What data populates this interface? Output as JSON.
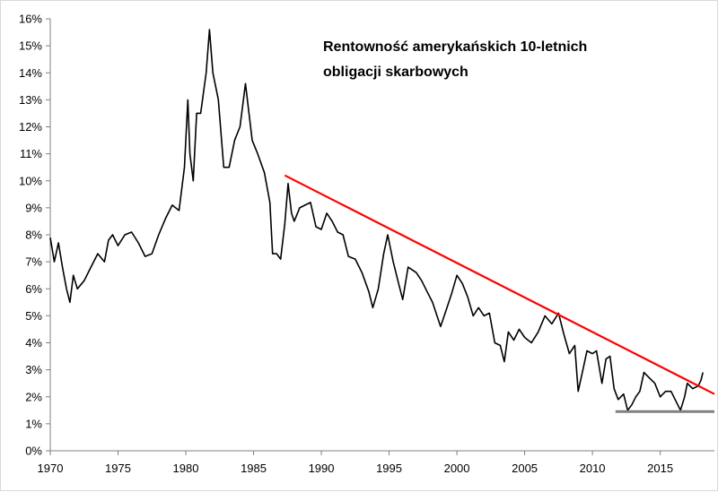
{
  "chart_data": {
    "type": "line",
    "title": "Rentowność amerykańskich 10-letnich obligacji skarbowych",
    "title_lines": [
      "Rentowność amerykańskich 10-letnich",
      "obligacji skarbowych"
    ],
    "xlabel": "",
    "ylabel": "",
    "xlim": [
      1970,
      2019
    ],
    "ylim": [
      0,
      16
    ],
    "x_ticks": [
      1970,
      1975,
      1980,
      1985,
      1990,
      1995,
      2000,
      2005,
      2010,
      2015
    ],
    "y_ticks": [
      0,
      1,
      2,
      3,
      4,
      5,
      6,
      7,
      8,
      9,
      10,
      11,
      12,
      13,
      14,
      15,
      16
    ],
    "y_tick_labels": [
      "0%",
      "1%",
      "2%",
      "3%",
      "4%",
      "5%",
      "6%",
      "7%",
      "8%",
      "9%",
      "10%",
      "11%",
      "12%",
      "13%",
      "14%",
      "15%",
      "16%"
    ],
    "grid": false,
    "legend": "none",
    "series": [
      {
        "color": "#000000",
        "x": [
          1970.0,
          1970.3,
          1970.6,
          1970.9,
          1971.2,
          1971.45,
          1971.7,
          1972.0,
          1972.5,
          1973.0,
          1973.5,
          1974.0,
          1974.3,
          1974.6,
          1975.0,
          1975.5,
          1976.0,
          1976.5,
          1977.0,
          1977.5,
          1978.0,
          1978.5,
          1979.0,
          1979.5,
          1979.9,
          1980.15,
          1980.3,
          1980.55,
          1980.8,
          1981.1,
          1981.5,
          1981.75,
          1982.0,
          1982.4,
          1982.8,
          1983.2,
          1983.6,
          1984.0,
          1984.4,
          1984.9,
          1985.3,
          1985.8,
          1986.2,
          1986.4,
          1986.7,
          1987.0,
          1987.3,
          1987.55,
          1987.8,
          1988.0,
          1988.4,
          1988.8,
          1989.2,
          1989.6,
          1990.0,
          1990.4,
          1990.8,
          1991.2,
          1991.6,
          1992.0,
          1992.5,
          1993.0,
          1993.5,
          1993.8,
          1994.2,
          1994.6,
          1994.9,
          1995.3,
          1995.7,
          1996.0,
          1996.4,
          1997.0,
          1997.4,
          1997.8,
          1998.2,
          1998.8,
          1999.2,
          1999.6,
          2000.0,
          2000.4,
          2000.8,
          2001.2,
          2001.6,
          2002.0,
          2002.4,
          2002.8,
          2003.2,
          2003.5,
          2003.8,
          2004.2,
          2004.6,
          2005.0,
          2005.5,
          2006.0,
          2006.5,
          2007.0,
          2007.5,
          2007.9,
          2008.3,
          2008.7,
          2008.95,
          2009.3,
          2009.6,
          2010.0,
          2010.3,
          2010.7,
          2011.0,
          2011.3,
          2011.6,
          2011.9,
          2012.3,
          2012.6,
          2012.9,
          2013.2,
          2013.5,
          2013.8,
          2014.2,
          2014.6,
          2015.0,
          2015.4,
          2015.8,
          2016.2,
          2016.5,
          2016.8,
          2017.0,
          2017.4,
          2017.8,
          2018.0,
          2018.15
        ],
        "y": [
          7.9,
          7.0,
          7.7,
          6.8,
          6.0,
          5.5,
          6.5,
          6.0,
          6.3,
          6.8,
          7.3,
          7.0,
          7.8,
          8.0,
          7.6,
          8.0,
          8.1,
          7.7,
          7.2,
          7.3,
          8.0,
          8.6,
          9.1,
          8.9,
          10.5,
          13.0,
          11.0,
          10.0,
          12.5,
          12.5,
          14.0,
          15.6,
          14.0,
          13.0,
          10.5,
          10.5,
          11.5,
          12.0,
          13.6,
          11.5,
          11.0,
          10.3,
          9.2,
          7.3,
          7.3,
          7.1,
          8.4,
          9.9,
          8.8,
          8.5,
          9.0,
          9.1,
          9.2,
          8.3,
          8.2,
          8.8,
          8.5,
          8.1,
          8.0,
          7.2,
          7.1,
          6.6,
          5.9,
          5.3,
          6.0,
          7.3,
          8.0,
          7.0,
          6.2,
          5.6,
          6.8,
          6.6,
          6.3,
          5.9,
          5.5,
          4.6,
          5.2,
          5.8,
          6.5,
          6.2,
          5.7,
          5.0,
          5.3,
          5.0,
          5.1,
          4.0,
          3.9,
          3.3,
          4.4,
          4.1,
          4.5,
          4.2,
          4.0,
          4.4,
          5.0,
          4.7,
          5.1,
          4.3,
          3.6,
          3.9,
          2.2,
          3.0,
          3.7,
          3.6,
          3.7,
          2.5,
          3.4,
          3.5,
          2.3,
          1.9,
          2.1,
          1.5,
          1.7,
          2.0,
          2.2,
          2.9,
          2.7,
          2.5,
          2.0,
          2.2,
          2.2,
          1.8,
          1.5,
          2.0,
          2.5,
          2.3,
          2.4,
          2.6,
          2.9
        ]
      },
      {
        "color": "#ff0000",
        "x": [
          1987.3,
          2019.0
        ],
        "y": [
          10.2,
          2.1
        ]
      },
      {
        "color": "#808080",
        "x": [
          2011.7,
          2019.0
        ],
        "y": [
          1.45,
          1.45
        ]
      }
    ]
  }
}
